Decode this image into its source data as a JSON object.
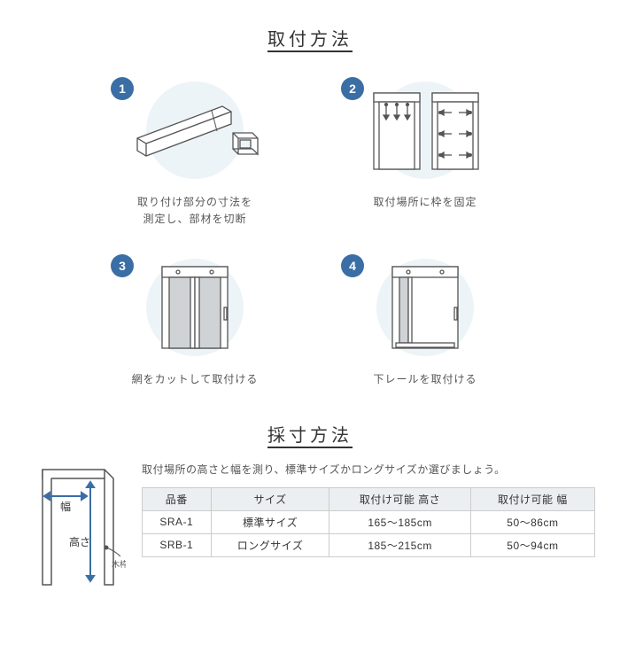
{
  "install_section": {
    "title": "取付方法",
    "badge_bg": "#3a6ea5",
    "circle_bg": "#edf4f7",
    "steps": [
      {
        "num": "1",
        "caption": "取り付け部分の寸法を\n測定し、部材を切断"
      },
      {
        "num": "2",
        "caption": "取付場所に枠を固定"
      },
      {
        "num": "3",
        "caption": "網をカットして取付ける"
      },
      {
        "num": "4",
        "caption": "下レールを取付ける"
      }
    ]
  },
  "measure_section": {
    "title": "採寸方法",
    "desc": "取付場所の高さと幅を測り、標準サイズかロングサイズか選びましょう。",
    "labels": {
      "width": "幅",
      "height": "高さ",
      "wood": "木枠"
    },
    "table": {
      "columns": [
        "品番",
        "サイズ",
        "取付け可能 高さ",
        "取付け可能 幅"
      ],
      "rows": [
        [
          "SRA-1",
          "標準サイズ",
          "165～185cm",
          "50～86cm"
        ],
        [
          "SRB-1",
          "ロングサイズ",
          "185～215cm",
          "50～94cm"
        ]
      ],
      "header_bg": "#ebeff2",
      "border_color": "#cccccc"
    }
  },
  "colors": {
    "stroke": "#555555",
    "light_stroke": "#888888",
    "arrow": "#3a6ea5",
    "mesh_fill": "#d0d3d6"
  }
}
